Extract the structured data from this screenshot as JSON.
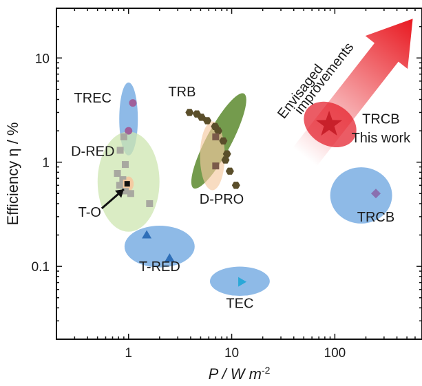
{
  "chart_data": {
    "type": "scatter",
    "xlabel": "P / W m",
    "xlabel_superscript": "-2",
    "ylabel": "Efficiency η / %",
    "x_scale": "log",
    "y_scale": "log",
    "xlim": [
      0.2,
      700
    ],
    "ylim": [
      0.02,
      30
    ],
    "x_ticks": [
      {
        "value": 1,
        "label": "1"
      },
      {
        "value": 10,
        "label": "10"
      },
      {
        "value": 100,
        "label": "100"
      }
    ],
    "y_ticks": [
      {
        "value": 0.1,
        "label": "0.1"
      },
      {
        "value": 1,
        "label": "1"
      },
      {
        "value": 10,
        "label": "10"
      }
    ],
    "grid": false,
    "colors": {
      "blue_region": "#7aaee3",
      "green_region": "#5c8a2e",
      "light_green_region": "#cde6b0",
      "peach_region": "#f5c9a0",
      "red_region": "#e8404a",
      "purple_circle": "#a0609a",
      "purple_diamond": "#8a70b0",
      "blue_triangle": "#2f6fb8",
      "cyan_triangle": "#2aa8d8",
      "gray_square": "#a8a8a0",
      "olive_hexagon": "#5a4e2a",
      "brown_square": "#7a5a4a",
      "star": "#c8202a",
      "arrow": "#e81820"
    },
    "regions": [
      {
        "name": "TREC",
        "cx": 1.0,
        "cy": 2.6,
        "rx_dec": 0.09,
        "ry_dec": 0.35,
        "color": "blue_region",
        "opacity": 0.85
      },
      {
        "name": "D-RED",
        "cx": 1.0,
        "cy": 0.65,
        "rx_dec": 0.3,
        "ry_dec": 0.48,
        "color": "light_green_region",
        "opacity": 0.75
      },
      {
        "name": "T-O",
        "cx": 1.0,
        "cy": 0.62,
        "rx_dec": 0.05,
        "ry_dec": 0.07,
        "color": "peach_region",
        "opacity": 0.9
      },
      {
        "name": "TRB",
        "cx": 7.5,
        "cy": 1.6,
        "rx_dec": 0.52,
        "ry_dec": 0.12,
        "angle": 62,
        "color": "green_region",
        "opacity": 0.85
      },
      {
        "name": "D-PRO",
        "cx": 6.5,
        "cy": 1.15,
        "rx_dec": 0.12,
        "ry_dec": 0.33,
        "color": "peach_region",
        "opacity": 0.65
      },
      {
        "name": "T-RED",
        "cx": 2.0,
        "cy": 0.155,
        "rx_dec": 0.34,
        "ry_dec": 0.2,
        "color": "blue_region",
        "opacity": 0.85
      },
      {
        "name": "TEC",
        "cx": 12,
        "cy": 0.072,
        "rx_dec": 0.29,
        "ry_dec": 0.14,
        "color": "blue_region",
        "opacity": 0.85
      },
      {
        "name": "TRCB",
        "cx": 180,
        "cy": 0.48,
        "rx_dec": 0.3,
        "ry_dec": 0.27,
        "color": "blue_region",
        "opacity": 0.85
      },
      {
        "name": "TRCB-this-work",
        "cx": 90,
        "cy": 2.3,
        "rx_dec": 0.27,
        "ry_dec": 0.2,
        "angle": -30,
        "color": "red_region",
        "opacity": 0.85
      }
    ],
    "series": [
      {
        "marker": "circle",
        "color": "purple_circle",
        "points": [
          [
            1.1,
            3.7
          ],
          [
            1.0,
            2.0
          ]
        ]
      },
      {
        "marker": "square",
        "color": "gray_square",
        "points": [
          [
            0.9,
            1.75
          ],
          [
            0.83,
            1.3
          ],
          [
            0.93,
            0.95
          ],
          [
            0.78,
            0.78
          ],
          [
            0.88,
            0.68
          ],
          [
            0.82,
            0.6
          ],
          [
            0.93,
            0.53
          ],
          [
            1.05,
            0.5
          ],
          [
            1.6,
            0.4
          ]
        ]
      },
      {
        "marker": "square",
        "color": "olive_hexagon",
        "points": [
          [
            0.97,
            0.62
          ]
        ]
      },
      {
        "marker": "hexagon",
        "color": "olive_hexagon",
        "points": [
          [
            3.9,
            3.0
          ],
          [
            4.6,
            2.9
          ],
          [
            5.1,
            2.7
          ],
          [
            5.8,
            2.5
          ],
          [
            6.9,
            2.2
          ],
          [
            7.4,
            2.0
          ],
          [
            8.3,
            1.6
          ],
          [
            9.0,
            1.2
          ],
          [
            8.7,
            1.05
          ],
          [
            9.6,
            0.82
          ],
          [
            11.0,
            0.6
          ]
        ]
      },
      {
        "marker": "square",
        "color": "brown_square",
        "points": [
          [
            7.0,
            1.75
          ],
          [
            7.0,
            0.92
          ]
        ]
      },
      {
        "marker": "triangle-up",
        "color": "blue_triangle",
        "points": [
          [
            1.5,
            0.2
          ],
          [
            2.5,
            0.12
          ]
        ]
      },
      {
        "marker": "triangle-right",
        "color": "cyan_triangle",
        "points": [
          [
            12.5,
            0.071
          ]
        ]
      },
      {
        "marker": "diamond",
        "color": "purple_diamond",
        "points": [
          [
            250,
            0.5
          ]
        ]
      },
      {
        "marker": "star",
        "color": "star",
        "points": [
          [
            88,
            2.3
          ]
        ]
      }
    ],
    "annotations": {
      "trec": {
        "text": "TREC",
        "x": 0.45,
        "y": 3.75
      },
      "trb": {
        "text": "TRB",
        "x": 3.3,
        "y": 4.3
      },
      "d_red": {
        "text": "D-RED",
        "x": 0.45,
        "y": 1.15
      },
      "t_o": {
        "text": "T-O",
        "x": 0.42,
        "y": 0.3
      },
      "d_pro": {
        "text": "D-PRO",
        "x": 8.0,
        "y": 0.4
      },
      "t_red": {
        "text": "T-RED",
        "x": 2.0,
        "y": 0.09
      },
      "tec": {
        "text": "TEC",
        "x": 12.0,
        "y": 0.04
      },
      "trcb": {
        "text": "TRCB",
        "x": 250,
        "y": 0.27
      },
      "trcb_this_1": {
        "text": "TRCB",
        "x": 280,
        "y": 2.35
      },
      "trcb_this_2": {
        "text": "This work",
        "x": 280,
        "y": 1.55
      },
      "env_1": {
        "text": "Envisaged",
        "x": 50,
        "y": 4.5
      },
      "env_2": {
        "text": "improvements",
        "x": 85,
        "y": 6.0
      }
    }
  }
}
